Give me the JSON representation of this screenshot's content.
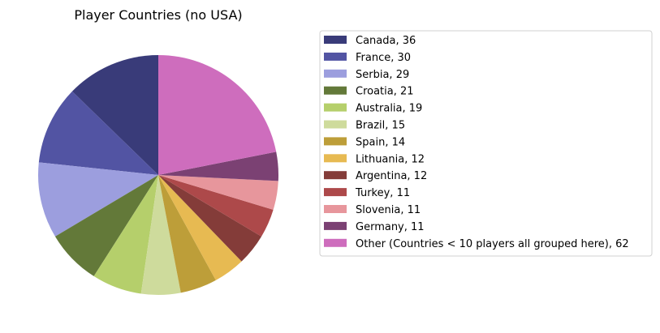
{
  "chart_data": {
    "type": "pie",
    "title": "Player Countries (no USA)",
    "start_angle_deg": 90,
    "direction": "counterclockwise",
    "legend_position": "right",
    "slices": [
      {
        "label": "Canada",
        "value": 36,
        "color": "#393b79",
        "legend": "Canada, 36"
      },
      {
        "label": "France",
        "value": 30,
        "color": "#5254a3",
        "legend": "France, 30"
      },
      {
        "label": "Serbia",
        "value": 29,
        "color": "#9c9ede",
        "legend": "Serbia, 29"
      },
      {
        "label": "Croatia",
        "value": 21,
        "color": "#637939",
        "legend": "Croatia, 21"
      },
      {
        "label": "Australia",
        "value": 19,
        "color": "#b5cf6b",
        "legend": "Australia, 19"
      },
      {
        "label": "Brazil",
        "value": 15,
        "color": "#cedb9c",
        "legend": "Brazil, 15"
      },
      {
        "label": "Spain",
        "value": 14,
        "color": "#bd9e39",
        "legend": "Spain, 14"
      },
      {
        "label": "Lithuania",
        "value": 12,
        "color": "#e7ba52",
        "legend": "Lithuania, 12"
      },
      {
        "label": "Argentina",
        "value": 12,
        "color": "#843c39",
        "legend": "Argentina, 12"
      },
      {
        "label": "Turkey",
        "value": 11,
        "color": "#ad494a",
        "legend": "Turkey, 11"
      },
      {
        "label": "Slovenia",
        "value": 11,
        "color": "#e7969c",
        "legend": "Slovenia, 11"
      },
      {
        "label": "Germany",
        "value": 11,
        "color": "#7b4173",
        "legend": "Germany, 11"
      },
      {
        "label": "Other (Countries < 10 players all grouped here)",
        "value": 62,
        "color": "#ce6dbd",
        "legend": "Other (Countries < 10 players all grouped here), 62"
      }
    ]
  }
}
